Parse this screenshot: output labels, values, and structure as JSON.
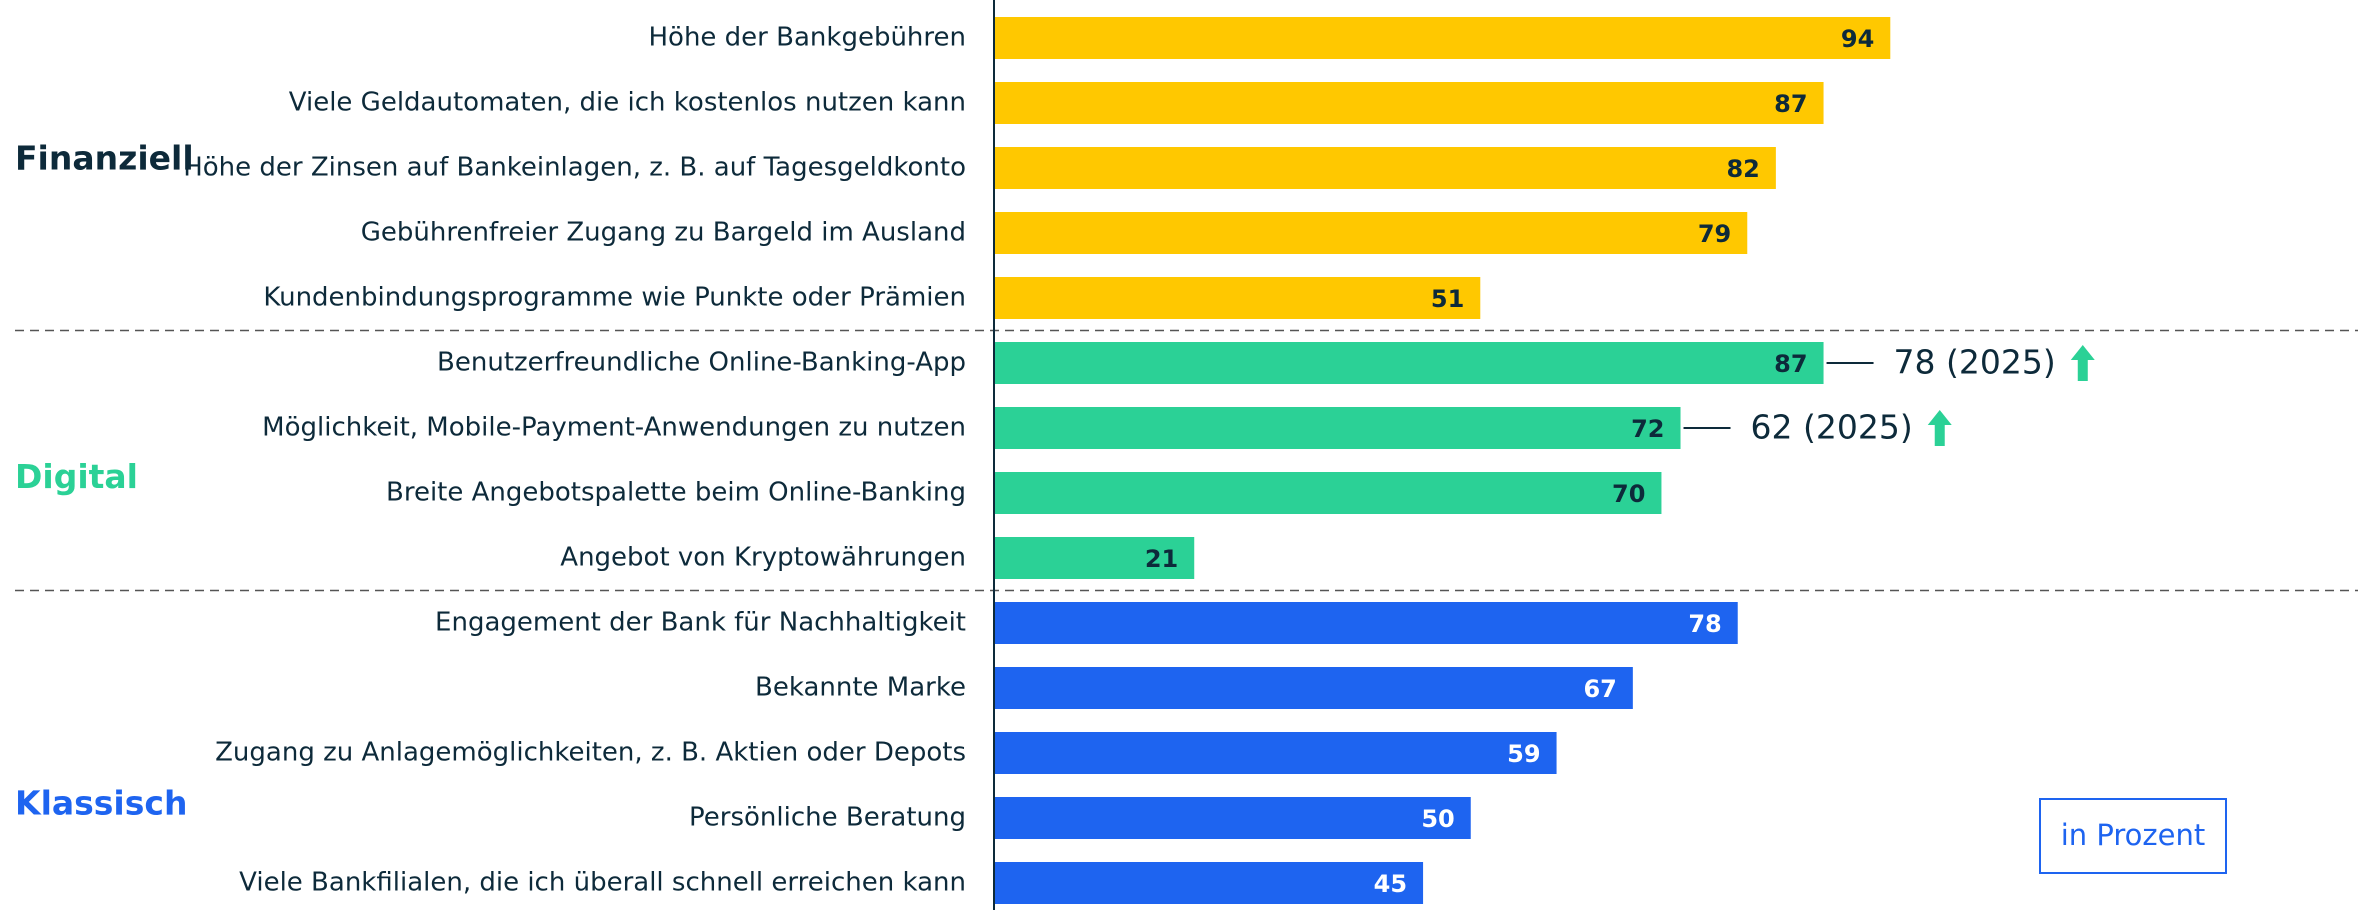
{
  "chart_data": {
    "type": "bar",
    "orientation": "horizontal",
    "xlim": [
      0,
      100
    ],
    "unit_note": "in Prozent",
    "groups": [
      {
        "name": "Finanziell",
        "color": "#ffc800",
        "label_color": "#0d2a3a",
        "categories": [
          "Höhe der Bankgebühren",
          "Viele Geldautomaten, die ich kostenlos nutzen kann",
          "Höhe der Zinsen auf Bankeinlagen, z. B. auf Tagesgeldkonto",
          "Gebührenfreier Zugang zu Bargeld im Ausland",
          "Kundenbindungsprogramme wie Punkte oder Prämien"
        ],
        "values": [
          94,
          87,
          82,
          79,
          51
        ]
      },
      {
        "name": "Digital",
        "color": "#2bd196",
        "label_color": "#0d2a3a",
        "categories": [
          "Benutzerfreundliche Online-Banking-App",
          "Möglichkeit, Mobile-Payment-Anwendungen zu nutzen",
          "Breite Angebotspalette beim Online-Banking",
          "Angebot von Kryptowährungen"
        ],
        "values": [
          87,
          72,
          70,
          21
        ],
        "annotations": [
          "78 (2025)",
          "62 (2025)",
          null,
          null
        ]
      },
      {
        "name": "Klassisch",
        "color": "#1e64f0",
        "label_color": "#ffffff",
        "categories": [
          "Engagement der Bank für Nachhaltigkeit",
          "Bekannte Marke",
          "Zugang zu Anlagemöglichkeiten, z. B. Aktien oder Depots",
          "Persönliche Beratung",
          "Viele Bankfilialen, die ich überall schnell erreichen kann"
        ],
        "values": [
          78,
          67,
          59,
          50,
          45
        ]
      }
    ]
  }
}
